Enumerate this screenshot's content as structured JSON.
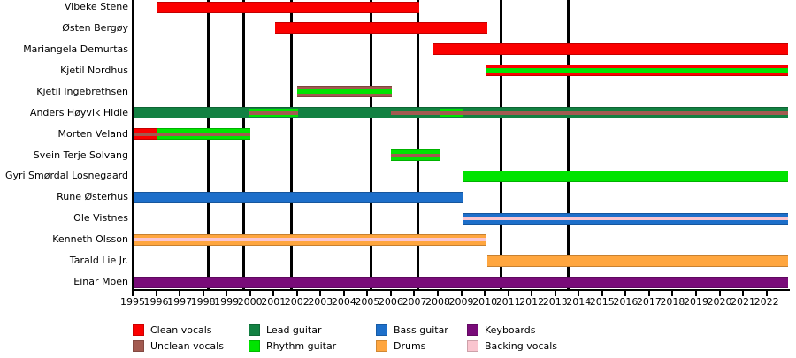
{
  "chart_data": {
    "type": "timeline",
    "description": "Band members timeline (Gantt-style), one row per member, colored bars indicate roles over time; vertical black lines mark album releases",
    "x_axis": {
      "start": 1995,
      "end": 2022,
      "tick_years": [
        1995,
        1996,
        1997,
        1998,
        1999,
        2000,
        2001,
        2002,
        2003,
        2004,
        2005,
        2006,
        2007,
        2008,
        2009,
        2010,
        2011,
        2012,
        2013,
        2014,
        2015,
        2016,
        2017,
        2018,
        2019,
        2020,
        2021,
        2022
      ]
    },
    "event_lines": [
      1998.24,
      1999.71,
      2001.78,
      2005.15,
      2007.17,
      2010.71,
      2013.54
    ],
    "roles": {
      "clean_vocals": {
        "label": "Clean vocals",
        "color": "#fb0000"
      },
      "unclean_vocals": {
        "label": "Unclean vocals",
        "color": "#a25a50"
      },
      "lead_guitar": {
        "label": "Lead guitar",
        "color": "#128142"
      },
      "rhythm_guitar": {
        "label": "Rhythm guitar",
        "color": "#00e400"
      },
      "bass_guitar": {
        "label": "Bass guitar",
        "color": "#1d6fca"
      },
      "drums": {
        "label": "Drums",
        "color": "#ffa63f"
      },
      "keyboards": {
        "label": "Keyboards",
        "color": "#790b79"
      },
      "backing_vocals": {
        "label": "Backing vocals",
        "color": "#fac5cf"
      }
    },
    "legend_columns": [
      [
        "clean_vocals",
        "unclean_vocals"
      ],
      [
        "lead_guitar",
        "rhythm_guitar"
      ],
      [
        "bass_guitar",
        "drums"
      ],
      [
        "keyboards",
        "backing_vocals"
      ]
    ],
    "members": [
      {
        "name": "Vibeke Stene",
        "segments": [
          {
            "role": "clean_vocals",
            "from": 1996.0,
            "to": 2007.2,
            "h": 13
          }
        ]
      },
      {
        "name": "Østen Bergøy",
        "segments": [
          {
            "role": "clean_vocals",
            "from": 2001.05,
            "to": 2010.1,
            "h": 13
          }
        ]
      },
      {
        "name": "Mariangela Demurtas",
        "segments": [
          {
            "role": "clean_vocals",
            "from": 2007.8,
            "to": 2022.92,
            "h": 13
          }
        ]
      },
      {
        "name": "Kjetil Nordhus",
        "segments": [
          {
            "role": "clean_vocals",
            "from": 2010.05,
            "to": 2022.92,
            "h": 13
          },
          {
            "role": "rhythm_guitar",
            "from": 2010.05,
            "to": 2022.92,
            "h": 6
          }
        ]
      },
      {
        "name": "Kjetil Ingebrethsen",
        "segments": [
          {
            "role": "unclean_vocals",
            "from": 2002.0,
            "to": 2006.05,
            "h": 13
          },
          {
            "role": "rhythm_guitar",
            "from": 2002.0,
            "to": 2006.05,
            "h": 5
          }
        ]
      },
      {
        "name": "Anders Høyvik Hidle",
        "segments": [
          {
            "role": "lead_guitar",
            "from": 1995.04,
            "to": 2022.92,
            "h": 13
          },
          {
            "role": "rhythm_guitar",
            "from": 1999.95,
            "to": 2002.05,
            "h": 9
          },
          {
            "role": "rhythm_guitar",
            "from": 2008.1,
            "to": 2009.05,
            "h": 9
          },
          {
            "role": "unclean_vocals",
            "from": 1999.95,
            "to": 2002.05,
            "h": 4
          },
          {
            "role": "unclean_vocals",
            "from": 2006.0,
            "to": 2022.92,
            "h": 4
          }
        ]
      },
      {
        "name": "Morten Veland",
        "segments": [
          {
            "role": "clean_vocals",
            "from": 1995.04,
            "to": 1996.03,
            "h": 13
          },
          {
            "role": "rhythm_guitar",
            "from": 1996.03,
            "to": 2000.0,
            "h": 13
          },
          {
            "role": "unclean_vocals",
            "from": 1995.04,
            "to": 2000.0,
            "h": 4
          }
        ]
      },
      {
        "name": "Svein Terje Solvang",
        "segments": [
          {
            "role": "rhythm_guitar",
            "from": 2006.0,
            "to": 2008.1,
            "h": 13
          },
          {
            "role": "unclean_vocals",
            "from": 2006.0,
            "to": 2008.1,
            "h": 4
          }
        ]
      },
      {
        "name": "Gyri Smørdal Losnegaard",
        "segments": [
          {
            "role": "rhythm_guitar",
            "from": 2009.05,
            "to": 2022.92,
            "h": 13
          }
        ]
      },
      {
        "name": "Rune Østerhus",
        "segments": [
          {
            "role": "bass_guitar",
            "from": 1995.04,
            "to": 2009.05,
            "h": 13
          }
        ]
      },
      {
        "name": "Ole Vistnes",
        "segments": [
          {
            "role": "bass_guitar",
            "from": 2009.05,
            "to": 2022.92,
            "h": 13
          },
          {
            "role": "backing_vocals",
            "from": 2009.05,
            "to": 2022.92,
            "h": 4
          }
        ]
      },
      {
        "name": "Kenneth Olsson",
        "segments": [
          {
            "role": "drums",
            "from": 1995.04,
            "to": 2010.05,
            "h": 13
          },
          {
            "role": "backing_vocals",
            "from": 1995.04,
            "to": 2010.05,
            "h": 4
          }
        ]
      },
      {
        "name": "Tarald Lie Jr.",
        "segments": [
          {
            "role": "drums",
            "from": 2010.12,
            "to": 2022.92,
            "h": 13
          }
        ]
      },
      {
        "name": "Einar Moen",
        "segments": [
          {
            "role": "keyboards",
            "from": 1995.04,
            "to": 2022.92,
            "h": 13
          }
        ]
      }
    ]
  }
}
